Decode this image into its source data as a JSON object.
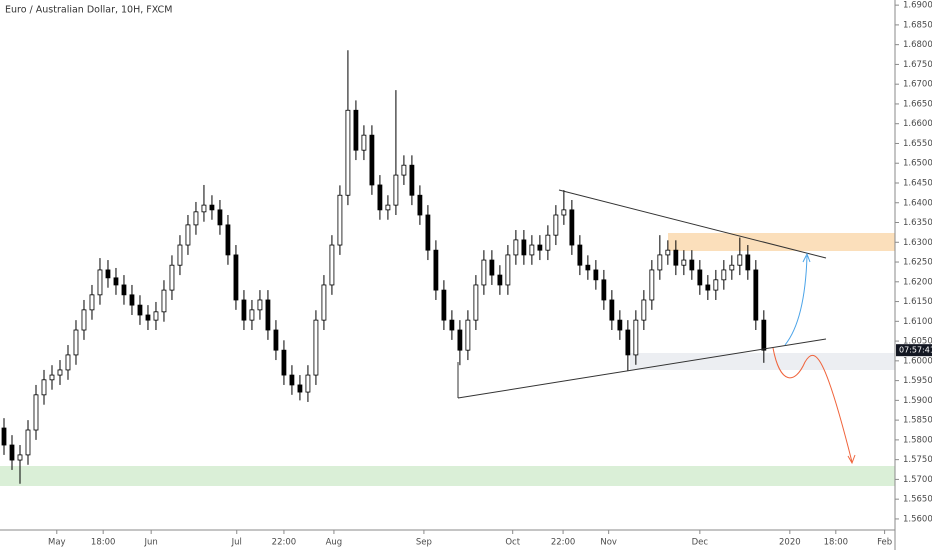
{
  "chart_data": {
    "type": "candlestick",
    "title": "Euro / Australian Dollar, 10H, FXCM",
    "open": [
      1.583,
      1.5787,
      1.5749,
      1.5762,
      1.5825,
      1.5914,
      1.5952,
      1.5964,
      1.5977,
      1.6015,
      1.6078,
      1.6129,
      1.6167,
      1.623,
      1.621,
      1.6192,
      1.6167,
      1.6141,
      1.6116,
      1.6103,
      1.6124,
      1.6179,
      1.6242,
      1.6293,
      1.6344,
      1.6377,
      1.6394,
      1.6382,
      1.6344,
      1.6268,
      1.6154,
      1.6103,
      1.6129,
      1.6154,
      1.6078,
      1.6027,
      1.5964,
      1.5939,
      1.5921,
      1.5964,
      1.6103,
      1.6192,
      1.6293,
      1.6419,
      1.6634,
      1.6533,
      1.6571,
      1.6445,
      1.6382,
      1.6394,
      1.647,
      1.6495,
      1.6419,
      1.6369,
      1.628,
      1.6179,
      1.6103,
      1.6078,
      1.6027,
      1.6103,
      1.6192,
      1.6255,
      1.6217,
      1.6192,
      1.6268,
      1.6306,
      1.6268,
      1.6293,
      1.628,
      1.6318,
      1.6369,
      1.6382,
      1.6293,
      1.6242,
      1.623,
      1.6205,
      1.6154,
      1.6103,
      1.6078,
      1.6015,
      1.6103,
      1.6154,
      1.623,
      1.6268,
      1.628,
      1.6242,
      1.6255,
      1.623,
      1.6192,
      1.6179,
      1.6205,
      1.623,
      1.6242,
      1.6268,
      1.623,
      1.6103
    ],
    "high": [
      1.5855,
      1.5812,
      1.5787,
      1.585,
      1.5939,
      1.5977,
      1.5989,
      1.6002,
      1.604,
      1.6103,
      1.6154,
      1.6192,
      1.626,
      1.6255,
      1.6235,
      1.6217,
      1.6192,
      1.6166,
      1.6141,
      1.6149,
      1.6204,
      1.6267,
      1.6318,
      1.6369,
      1.6402,
      1.6445,
      1.6419,
      1.6407,
      1.6369,
      1.6293,
      1.6179,
      1.6154,
      1.6179,
      1.6179,
      1.6103,
      1.6052,
      1.5989,
      1.5964,
      1.5989,
      1.6128,
      1.6217,
      1.6318,
      1.6444,
      1.6786,
      1.6659,
      1.6596,
      1.6596,
      1.647,
      1.6419,
      1.6685,
      1.652,
      1.652,
      1.6444,
      1.6394,
      1.6305,
      1.6204,
      1.6128,
      1.6103,
      1.6128,
      1.6217,
      1.628,
      1.628,
      1.6242,
      1.6293,
      1.6331,
      1.6331,
      1.6318,
      1.6318,
      1.6343,
      1.6394,
      1.6432,
      1.6407,
      1.6318,
      1.6267,
      1.6255,
      1.623,
      1.6179,
      1.6128,
      1.6103,
      1.6128,
      1.6179,
      1.6255,
      1.6318,
      1.6305,
      1.6305,
      1.628,
      1.628,
      1.6255,
      1.6217,
      1.623,
      1.6255,
      1.6267,
      1.6312,
      1.6293,
      1.6255,
      1.6128
    ],
    "low": [
      1.5762,
      1.5724,
      1.5689,
      1.5737,
      1.58,
      1.5889,
      1.5927,
      1.5939,
      1.5952,
      1.599,
      1.6053,
      1.6104,
      1.6142,
      1.6185,
      1.6167,
      1.6142,
      1.6116,
      1.6091,
      1.6078,
      1.6078,
      1.6099,
      1.6154,
      1.6217,
      1.6268,
      1.6319,
      1.6352,
      1.6357,
      1.6319,
      1.6243,
      1.6129,
      1.6078,
      1.6078,
      1.6104,
      1.6053,
      1.6002,
      1.5939,
      1.5914,
      1.59,
      1.5896,
      1.5939,
      1.6078,
      1.6167,
      1.6268,
      1.6394,
      1.6508,
      1.6508,
      1.642,
      1.6357,
      1.6357,
      1.6369,
      1.6445,
      1.6394,
      1.6344,
      1.6255,
      1.6154,
      1.6078,
      1.6053,
      1.5989,
      1.6002,
      1.6078,
      1.6167,
      1.6192,
      1.6167,
      1.6167,
      1.6243,
      1.6243,
      1.6243,
      1.6255,
      1.6255,
      1.6293,
      1.6344,
      1.6268,
      1.6217,
      1.6205,
      1.618,
      1.6129,
      1.6078,
      1.6053,
      1.5975,
      1.599,
      1.6078,
      1.6129,
      1.6205,
      1.6243,
      1.6217,
      1.6217,
      1.6205,
      1.6167,
      1.6154,
      1.6154,
      1.618,
      1.6205,
      1.6217,
      1.6205,
      1.6078,
      1.5995
    ],
    "close": [
      1.5787,
      1.5749,
      1.5762,
      1.5825,
      1.5914,
      1.5952,
      1.5964,
      1.5977,
      1.6015,
      1.6078,
      1.6129,
      1.6167,
      1.623,
      1.621,
      1.6192,
      1.6167,
      1.6141,
      1.6116,
      1.6103,
      1.6124,
      1.6179,
      1.6242,
      1.6293,
      1.6344,
      1.6377,
      1.6394,
      1.6382,
      1.6344,
      1.6268,
      1.6154,
      1.6103,
      1.6129,
      1.6154,
      1.6078,
      1.6027,
      1.5964,
      1.5939,
      1.5921,
      1.5964,
      1.6103,
      1.6192,
      1.6293,
      1.6419,
      1.6634,
      1.6533,
      1.6571,
      1.6445,
      1.6382,
      1.6394,
      1.647,
      1.6495,
      1.6419,
      1.6369,
      1.628,
      1.6179,
      1.6103,
      1.6078,
      1.6027,
      1.6103,
      1.6192,
      1.6255,
      1.6217,
      1.6192,
      1.6268,
      1.6306,
      1.6268,
      1.6293,
      1.628,
      1.6318,
      1.6369,
      1.6382,
      1.6293,
      1.6242,
      1.623,
      1.6205,
      1.6154,
      1.6103,
      1.6078,
      1.6015,
      1.6103,
      1.6154,
      1.623,
      1.6268,
      1.628,
      1.6242,
      1.6255,
      1.623,
      1.6192,
      1.6179,
      1.6205,
      1.623,
      1.6242,
      1.6268,
      1.623,
      1.6103,
      1.6027
    ],
    "up_color": "#ffffff",
    "down_color": "#000000",
    "wick_color": "#000000",
    "countdown": "07:57:41",
    "xlim": [
      -0.5,
      111.4
    ],
    "xticks": [
      {
        "value": 6.6,
        "label": "May"
      },
      {
        "value": 12.4,
        "label": "18:00"
      },
      {
        "value": 18.4,
        "label": "Jun"
      },
      {
        "value": 29.1,
        "label": "Jul"
      },
      {
        "value": 35.0,
        "label": "22:00"
      },
      {
        "value": 41.25,
        "label": "Aug"
      },
      {
        "value": 52.5,
        "label": "Sep"
      },
      {
        "value": 63.6,
        "label": "Oct"
      },
      {
        "value": 69.9,
        "label": "22:00"
      },
      {
        "value": 75.6,
        "label": "Nov"
      },
      {
        "value": 87.0,
        "label": "Dec"
      },
      {
        "value": 98.25,
        "label": "2020"
      },
      {
        "value": 104.0,
        "label": "18:00"
      },
      {
        "value": 110.1,
        "label": "Feb"
      }
    ],
    "ylim": [
      1.5572,
      1.6913
    ],
    "yticks": [
      {
        "value": 1.69,
        "label": "1.69000"
      },
      {
        "value": 1.685,
        "label": "1.68500"
      },
      {
        "value": 1.68,
        "label": "1.68000"
      },
      {
        "value": 1.675,
        "label": "1.67500"
      },
      {
        "value": 1.67,
        "label": "1.67000"
      },
      {
        "value": 1.665,
        "label": "1.66500"
      },
      {
        "value": 1.66,
        "label": "1.66000"
      },
      {
        "value": 1.655,
        "label": "1.65500"
      },
      {
        "value": 1.65,
        "label": "1.65000"
      },
      {
        "value": 1.645,
        "label": "1.64500"
      },
      {
        "value": 1.64,
        "label": "1.64000"
      },
      {
        "value": 1.635,
        "label": "1.63500"
      },
      {
        "value": 1.63,
        "label": "1.63000"
      },
      {
        "value": 1.625,
        "label": "1.62500"
      },
      {
        "value": 1.62,
        "label": "1.62000"
      },
      {
        "value": 1.615,
        "label": "1.61500"
      },
      {
        "value": 1.61,
        "label": "1.61000"
      },
      {
        "value": 1.605,
        "label": "1.60500"
      },
      {
        "value": 1.6,
        "label": "1.60000"
      },
      {
        "value": 1.595,
        "label": "1.59500"
      },
      {
        "value": 1.59,
        "label": "1.59000"
      },
      {
        "value": 1.585,
        "label": "1.58500"
      },
      {
        "value": 1.58,
        "label": "1.58000"
      },
      {
        "value": 1.575,
        "label": "1.57500"
      },
      {
        "value": 1.57,
        "label": "1.57000"
      },
      {
        "value": 1.565,
        "label": "1.56500"
      },
      {
        "value": 1.56,
        "label": "1.56000"
      }
    ]
  }
}
